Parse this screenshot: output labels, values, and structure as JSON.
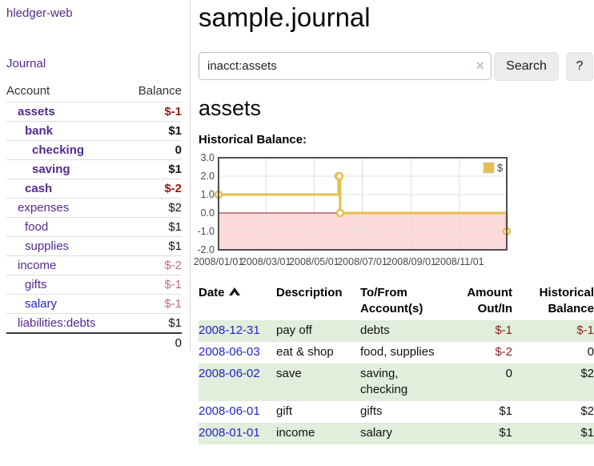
{
  "app": {
    "brand": "hledger-web",
    "nav_journal": "Journal"
  },
  "header": {
    "title": "sample.journal"
  },
  "search": {
    "value": "inacct:assets",
    "clear_label": "×",
    "button_label": "Search",
    "help_label": "?"
  },
  "account_page": {
    "title": "assets",
    "chart_heading": "Historical Balance:"
  },
  "sidebar": {
    "header": {
      "account": "Account",
      "balance": "Balance"
    },
    "accounts": [
      {
        "name": "assets",
        "balance": "$-1",
        "depth": 1,
        "matched": true,
        "balance_class": "neg-strong",
        "link_class": ""
      },
      {
        "name": "bank",
        "balance": "$1",
        "depth": 2,
        "matched": true,
        "balance_class": "",
        "link_class": ""
      },
      {
        "name": "checking",
        "balance": "0",
        "depth": 3,
        "matched": true,
        "balance_class": "",
        "link_class": ""
      },
      {
        "name": "saving",
        "balance": "$1",
        "depth": 3,
        "matched": true,
        "balance_class": "",
        "link_class": ""
      },
      {
        "name": "cash",
        "balance": "$-2",
        "depth": 2,
        "matched": true,
        "balance_class": "neg-strong",
        "link_class": ""
      },
      {
        "name": "expenses",
        "balance": "$2",
        "depth": 1,
        "matched": false,
        "balance_class": "",
        "link_class": ""
      },
      {
        "name": "food",
        "balance": "$1",
        "depth": 2,
        "matched": false,
        "balance_class": "",
        "link_class": ""
      },
      {
        "name": "supplies",
        "balance": "$1",
        "depth": 2,
        "matched": false,
        "balance_class": "",
        "link_class": ""
      },
      {
        "name": "income",
        "balance": "$-2",
        "depth": 1,
        "matched": false,
        "balance_class": "neg-soft",
        "link_class": ""
      },
      {
        "name": "gifts",
        "balance": "$-1",
        "depth": 2,
        "matched": false,
        "balance_class": "neg-soft",
        "link_class": ""
      },
      {
        "name": "salary",
        "balance": "$-1",
        "depth": 2,
        "matched": false,
        "balance_class": "neg-soft",
        "link_class": "blue"
      },
      {
        "name": "liabilities:debts",
        "balance": "$1",
        "depth": 1,
        "matched": false,
        "balance_class": "",
        "link_class": ""
      }
    ],
    "total": "0"
  },
  "chart_data": {
    "type": "line",
    "title": "Historical Balance:",
    "xlim": [
      "2008-01-01",
      "2008-12-31"
    ],
    "ylim": [
      -2.0,
      3.0
    ],
    "y_ticks": [
      3.0,
      2.0,
      1.0,
      0.0,
      -1.0,
      -2.0
    ],
    "x_ticks": [
      {
        "date": "2008-01-01",
        "label": "2008/01/01"
      },
      {
        "date": "2008-03-01",
        "label": "2008/03/01"
      },
      {
        "date": "2008-05-01",
        "label": "2008/05/01"
      },
      {
        "date": "2008-07-01",
        "label": "2008/07/01"
      },
      {
        "date": "2008-09-01",
        "label": "2008/09/01"
      },
      {
        "date": "2008-11-01",
        "label": "2008/11/01"
      }
    ],
    "grid": true,
    "legend_position": "top-right",
    "legend": {
      "label": "$",
      "swatch_color": "#e4bf4b"
    },
    "negative_region_fill": "#fcdada",
    "zero_line_color": "#8e1f1f",
    "series": [
      {
        "name": "$",
        "color": "#e4bf4b",
        "step": true,
        "points": [
          {
            "date": "2008-01-01",
            "value": 1
          },
          {
            "date": "2008-06-01",
            "value": 2
          },
          {
            "date": "2008-06-02",
            "value": 2
          },
          {
            "date": "2008-06-03",
            "value": 0
          },
          {
            "date": "2008-12-31",
            "value": -1
          }
        ]
      }
    ]
  },
  "register": {
    "columns": [
      "Date",
      "Description",
      "To/From Account(s)",
      "Amount Out/In",
      "Historical Balance"
    ],
    "rows": [
      {
        "date": "2008-12-31",
        "description": "pay off",
        "accounts": "debts",
        "amount": "$-1",
        "amount_class": "neg",
        "balance": "$-1",
        "balance_class": "neg"
      },
      {
        "date": "2008-06-03",
        "description": "eat & shop",
        "accounts": "food, supplies",
        "amount": "$-2",
        "amount_class": "neg",
        "balance": "0",
        "balance_class": ""
      },
      {
        "date": "2008-06-02",
        "description": "save",
        "accounts": "saving,\nchecking",
        "amount": "0",
        "amount_class": "",
        "balance": "$2",
        "balance_class": ""
      },
      {
        "date": "2008-06-01",
        "description": "gift",
        "accounts": "gifts",
        "amount": "$1",
        "amount_class": "",
        "balance": "$2",
        "balance_class": ""
      },
      {
        "date": "2008-01-01",
        "description": "income",
        "accounts": "salary",
        "amount": "$1",
        "amount_class": "",
        "balance": "$1",
        "balance_class": ""
      }
    ]
  }
}
